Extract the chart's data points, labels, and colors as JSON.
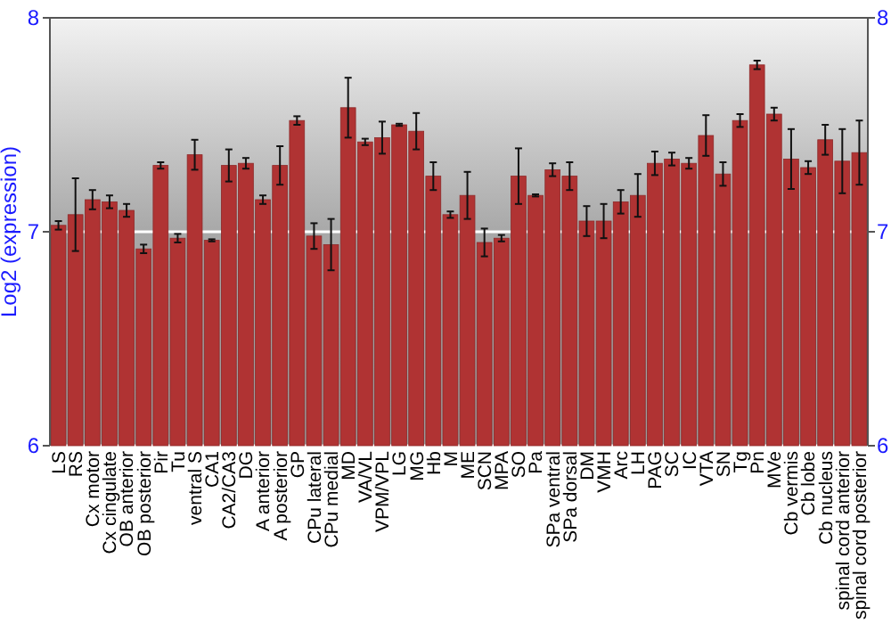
{
  "chart_data": {
    "type": "bar",
    "ylabel": "Log2 (expression)",
    "categories": [
      "LS",
      "RS",
      "Cx motor",
      "Cx cingulate",
      "OB anterior",
      "OB posterior",
      "Pir",
      "Tu",
      "ventral S",
      "CA1",
      "CA2/CA3",
      "DG",
      "A anterior",
      "A posterior",
      "GP",
      "CPu lateral",
      "CPu medial",
      "MD",
      "VA/VL",
      "VPM/VPL",
      "LG",
      "MG",
      "Hb",
      "M",
      "ME",
      "SCN",
      "MPA",
      "SO",
      "Pa",
      "SPa ventral",
      "SPa dorsal",
      "DM",
      "VMH",
      "Arc",
      "LH",
      "PAG",
      "SC",
      "IC",
      "VTA",
      "SN",
      "Tg",
      "Pn",
      "MVe",
      "Cb vermis",
      "Cb lobe",
      "Cb nucleus",
      "spinal cord anterior",
      "spinal cord posterior"
    ],
    "values": [
      7.03,
      7.08,
      7.15,
      7.14,
      7.1,
      6.92,
      7.31,
      6.97,
      7.36,
      6.96,
      7.31,
      7.32,
      7.15,
      7.31,
      7.52,
      6.98,
      6.94,
      7.58,
      7.42,
      7.44,
      7.5,
      7.47,
      7.26,
      7.08,
      7.17,
      6.95,
      6.97,
      7.26,
      7.17,
      7.29,
      7.26,
      7.05,
      7.05,
      7.14,
      7.17,
      7.32,
      7.34,
      7.32,
      7.45,
      7.27,
      7.52,
      7.78,
      7.55,
      7.34,
      7.3,
      7.43,
      7.33,
      7.37
    ],
    "errors": [
      0.02,
      0.17,
      0.045,
      0.03,
      0.03,
      0.02,
      0.015,
      0.02,
      0.07,
      0.005,
      0.075,
      0.025,
      0.02,
      0.09,
      0.02,
      0.06,
      0.12,
      0.14,
      0.015,
      0.075,
      0.005,
      0.085,
      0.065,
      0.015,
      0.11,
      0.065,
      0.015,
      0.13,
      0.005,
      0.03,
      0.065,
      0.07,
      0.08,
      0.055,
      0.1,
      0.055,
      0.03,
      0.025,
      0.095,
      0.055,
      0.03,
      0.02,
      0.03,
      0.14,
      0.03,
      0.07,
      0.15,
      0.15
    ],
    "color": "#b03333",
    "ylim": [
      6,
      8
    ],
    "yticks": [
      6,
      7,
      8
    ],
    "y2lim": [
      6,
      8
    ],
    "y2ticks": [
      6,
      7,
      8
    ],
    "grid": "y"
  }
}
